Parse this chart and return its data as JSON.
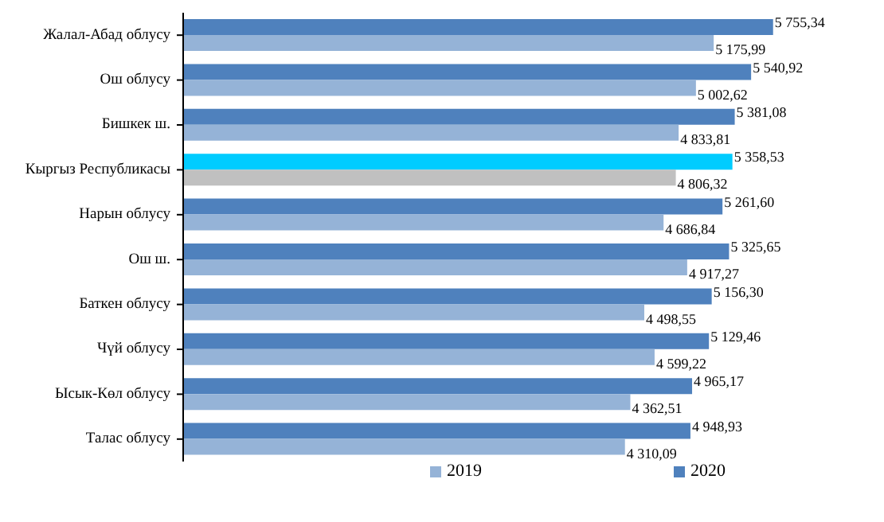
{
  "chart_data": {
    "type": "bar",
    "orientation": "horizontal",
    "categories": [
      "Жалал-Абад облусу",
      "Ош облусу",
      "Бишкек ш.",
      "Кыргыз Республикасы",
      "Нарын облусу",
      "Ош ш.",
      "Баткен облусу",
      "Чүй облусу",
      "Ысык-Көл облусу",
      "Талас облусу"
    ],
    "series": [
      {
        "name": "2019",
        "color": "#95b3d7",
        "colors": [
          "#95b3d7",
          "#95b3d7",
          "#95b3d7",
          "#c0c0c0",
          "#95b3d7",
          "#95b3d7",
          "#95b3d7",
          "#95b3d7",
          "#95b3d7",
          "#95b3d7"
        ],
        "values": [
          5175.99,
          5002.62,
          4833.81,
          4806.32,
          4686.84,
          4917.27,
          4498.55,
          4599.22,
          4362.51,
          4310.09
        ],
        "value_labels": [
          "5 175,99",
          "5 002,62",
          "4 833,81",
          "4 806,32",
          "4 686,84",
          "4 917,27",
          "4 498,55",
          "4 599,22",
          "4 362,51",
          "4 310,09"
        ]
      },
      {
        "name": "2020",
        "color": "#4f81bd",
        "colors": [
          "#4f81bd",
          "#4f81bd",
          "#4f81bd",
          "#00ccff",
          "#4f81bd",
          "#4f81bd",
          "#4f81bd",
          "#4f81bd",
          "#4f81bd",
          "#4f81bd"
        ],
        "values": [
          5755.34,
          5540.92,
          5381.08,
          5358.53,
          5261.6,
          5325.65,
          5156.3,
          5129.46,
          4965.17,
          4948.93
        ],
        "value_labels": [
          "5 755,34",
          "5 540,92",
          "5 381,08",
          "5 358,53",
          "5 261,60",
          "5 325,65",
          "5 156,30",
          "5 129,46",
          "4 965,17",
          "4 948,93"
        ]
      }
    ],
    "legend": "bottom"
  }
}
